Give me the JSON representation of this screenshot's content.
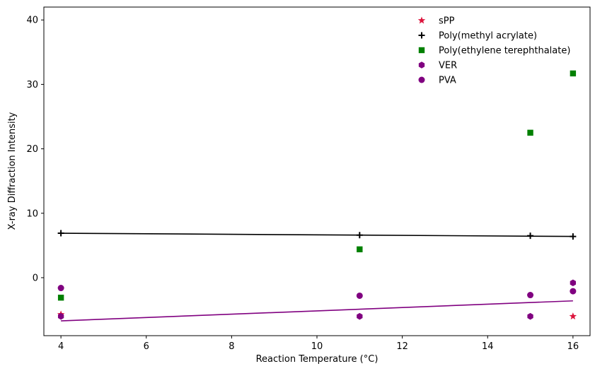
{
  "chart_data": {
    "type": "scatter",
    "xlabel": "Reaction Temperature (°C)",
    "ylabel": "X-ray Diffraction Intensity",
    "xlim": [
      3.6,
      16.4
    ],
    "ylim": [
      -9.0,
      42.0
    ],
    "xticks": [
      4,
      6,
      8,
      10,
      12,
      14,
      16
    ],
    "yticks": [
      0,
      10,
      20,
      30,
      40
    ],
    "grid": false,
    "legend_position": "top-right",
    "series": [
      {
        "name": "sPP",
        "marker": "star",
        "color": "#dc143c",
        "points": [
          [
            4,
            -5.7
          ],
          [
            16,
            -6.0
          ]
        ]
      },
      {
        "name": "Poly(methyl acrylate)",
        "marker": "plus",
        "color": "#000000",
        "points": [
          [
            4,
            6.9
          ],
          [
            11,
            6.6
          ],
          [
            15,
            6.5
          ],
          [
            16,
            6.4
          ]
        ]
      },
      {
        "name": "Poly(ethylene terephthalate)",
        "marker": "square",
        "color": "#008000",
        "points": [
          [
            4,
            -3.1
          ],
          [
            11,
            4.4
          ],
          [
            15,
            22.5
          ],
          [
            16,
            31.7
          ]
        ]
      },
      {
        "name": "VER",
        "marker": "hexagon",
        "color": "#800080",
        "points": [
          [
            4,
            -6.0
          ],
          [
            11,
            -6.0
          ],
          [
            15,
            -6.0
          ],
          [
            16,
            -0.8
          ]
        ]
      },
      {
        "name": "PVA",
        "marker": "circle",
        "color": "#800080",
        "points": [
          [
            4,
            -1.6
          ],
          [
            11,
            -2.8
          ],
          [
            15,
            -2.7
          ],
          [
            16,
            -2.1
          ]
        ]
      }
    ],
    "fit_lines": [
      {
        "color": "#000000",
        "points": [
          [
            4,
            6.9
          ],
          [
            16,
            6.4
          ]
        ]
      },
      {
        "color": "#800080",
        "points": [
          [
            4,
            -6.7
          ],
          [
            16,
            -3.6
          ]
        ]
      }
    ]
  }
}
